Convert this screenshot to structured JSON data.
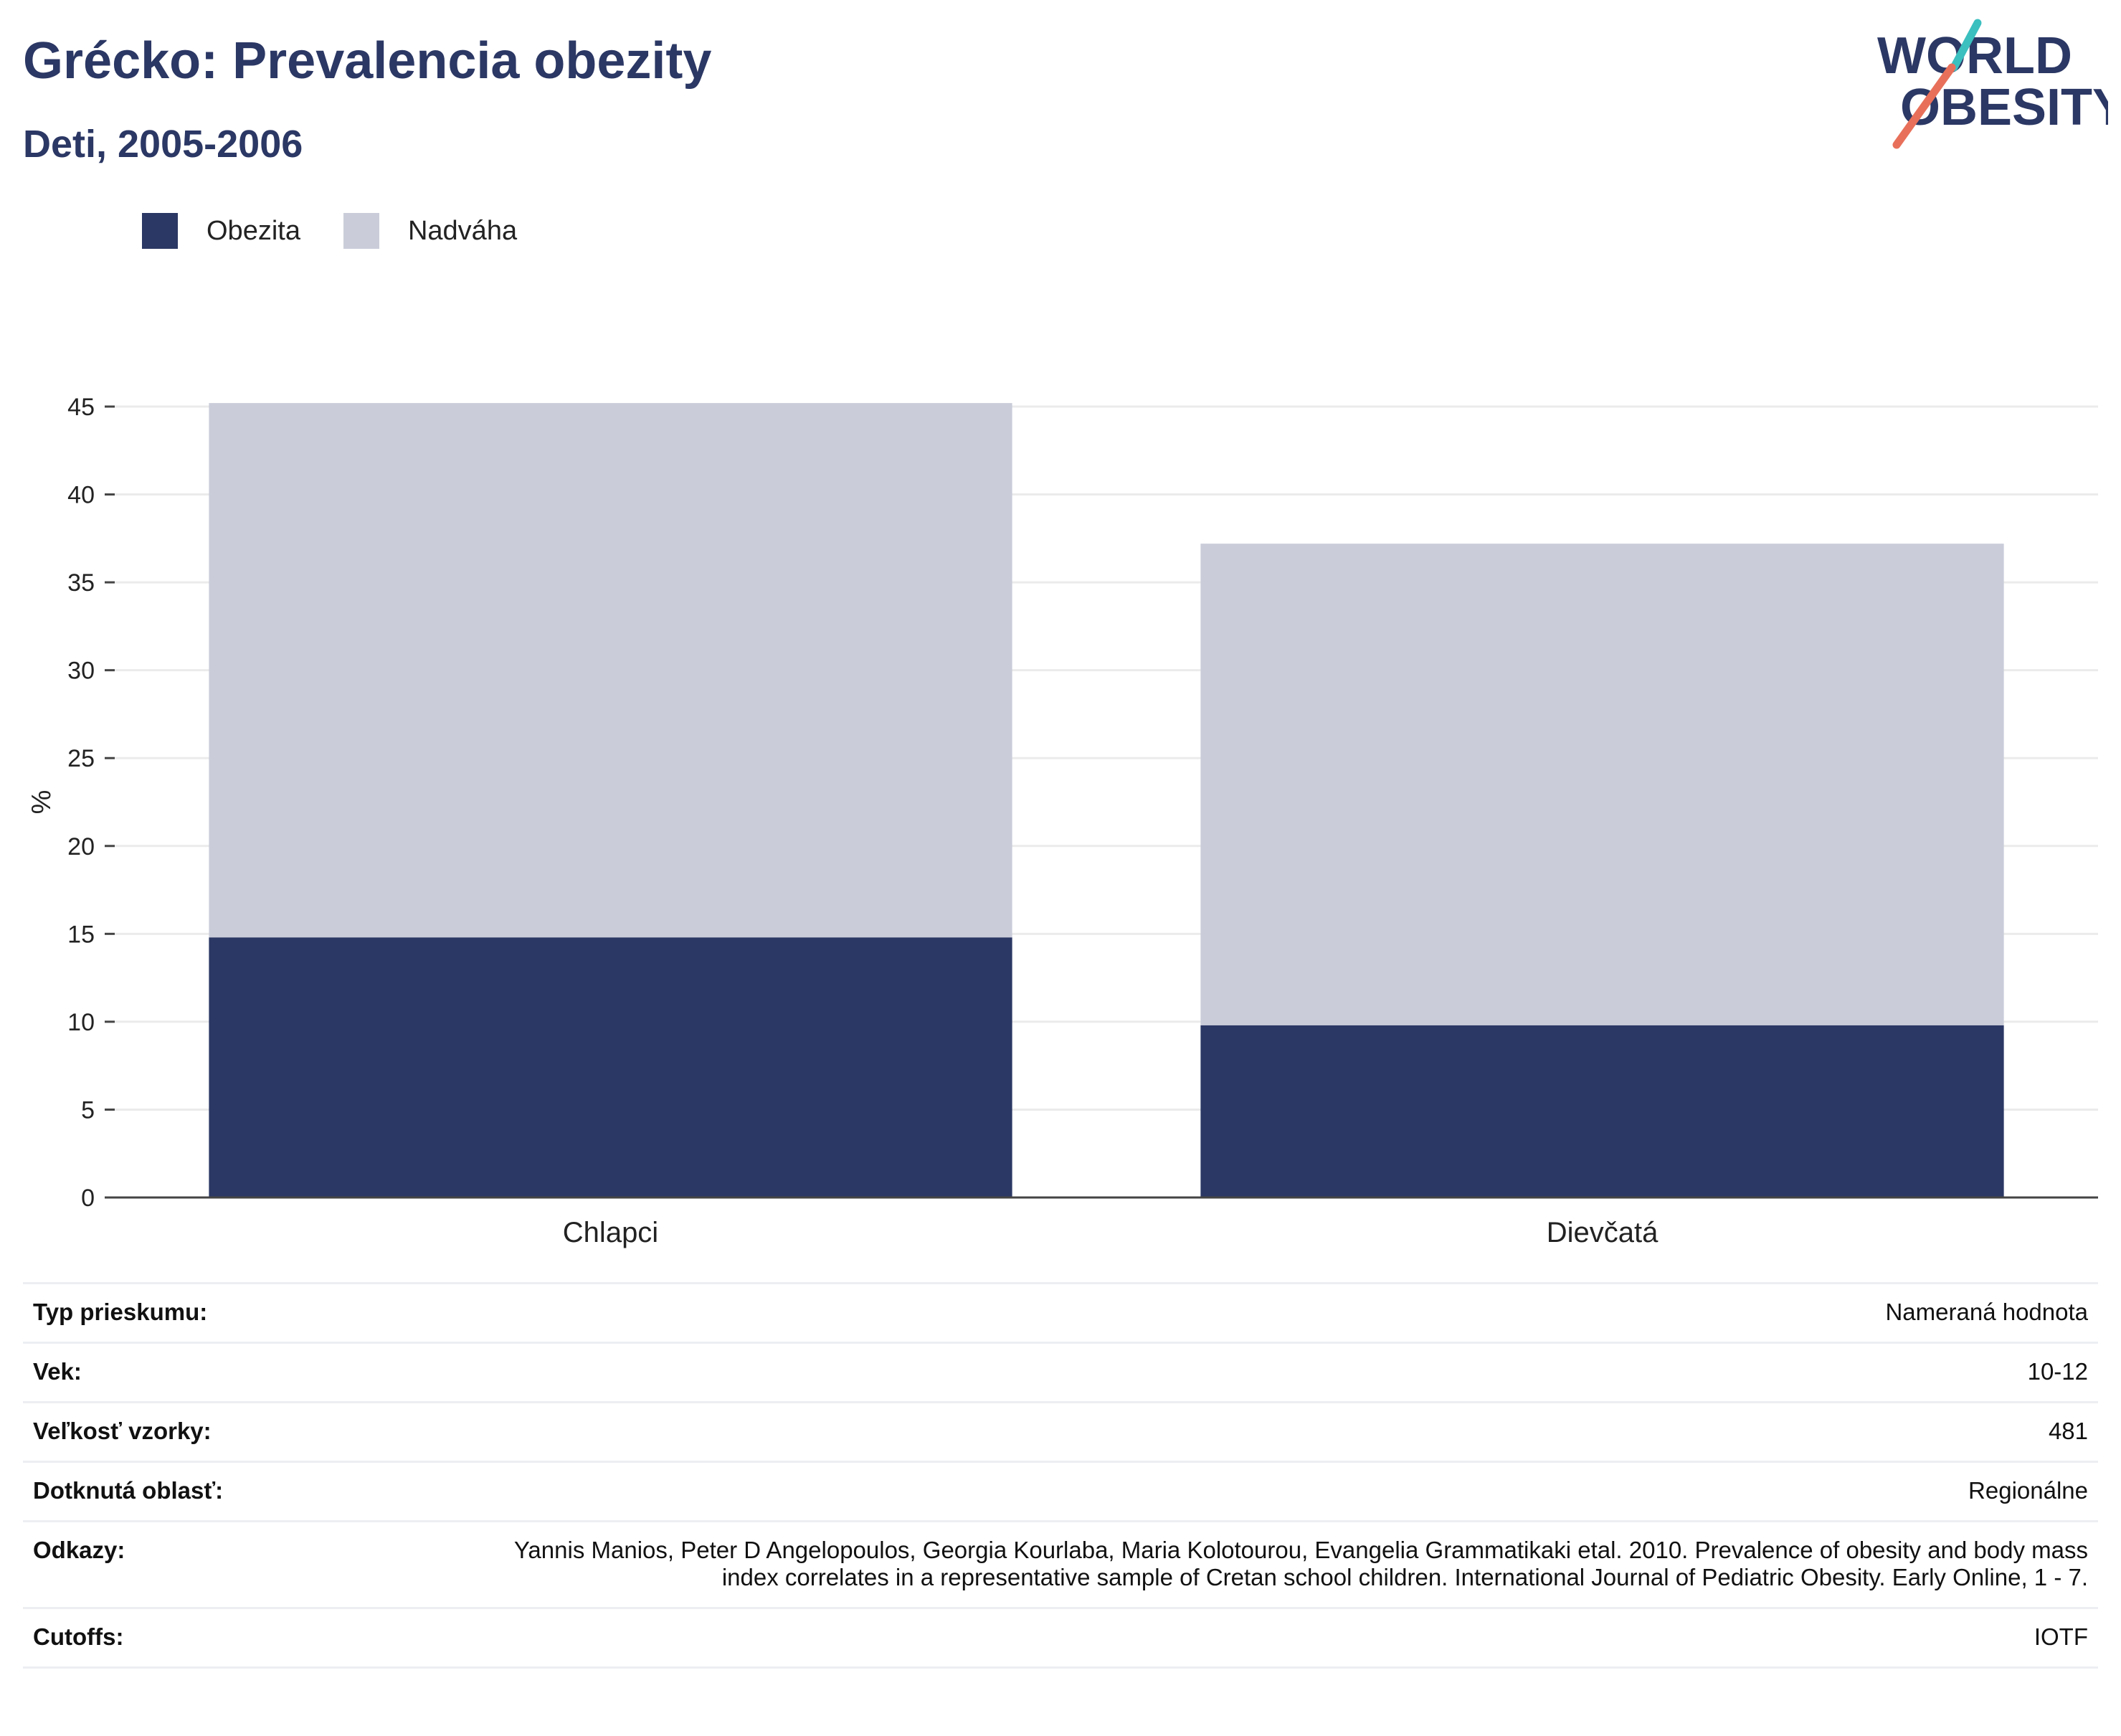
{
  "header": {
    "title": "Grécko: Prevalencia obezity",
    "subtitle": "Deti, 2005-2006",
    "logo_line1": "WORLD",
    "logo_line2": "OBESITY"
  },
  "colors": {
    "obezita": "#2b3764",
    "nadvaha": "#cacdd9",
    "title": "#2b3764",
    "logo_teal": "#3bbfbf",
    "logo_coral": "#e8705a"
  },
  "legend": [
    {
      "label": "Obezita",
      "color": "#2b3764"
    },
    {
      "label": "Nadváha",
      "color": "#cacdd9"
    }
  ],
  "chart_data": {
    "type": "bar",
    "stacked": true,
    "categories": [
      "Chlapci",
      "Dievčatá"
    ],
    "series": [
      {
        "name": "Obezita",
        "values": [
          14.8,
          9.8
        ]
      },
      {
        "name": "Nadváha",
        "values": [
          30.4,
          27.4
        ]
      }
    ],
    "ylabel": "%",
    "ylim": [
      0,
      45
    ],
    "yticks": [
      0,
      5,
      10,
      15,
      20,
      25,
      30,
      35,
      40,
      45
    ],
    "grid": true,
    "legend_position": "top-left"
  },
  "info_table": [
    {
      "key": "Typ prieskumu:",
      "value": "Nameraná hodnota"
    },
    {
      "key": "Vek:",
      "value": "10-12"
    },
    {
      "key": "Veľkosť vzorky:",
      "value": "481"
    },
    {
      "key": "Dotknutá oblasť:",
      "value": "Regionálne"
    },
    {
      "key": "Odkazy:",
      "value": "Yannis Manios, Peter D Angelopoulos, Georgia Kourlaba, Maria Kolotourou, Evangelia Grammatikaki etal. 2010. Prevalence of obesity and body mass index correlates in a representative sample of Cretan school children. International Journal of Pediatric Obesity. Early Online, 1 - 7."
    },
    {
      "key": "Cutoffs:",
      "value": "IOTF"
    }
  ]
}
